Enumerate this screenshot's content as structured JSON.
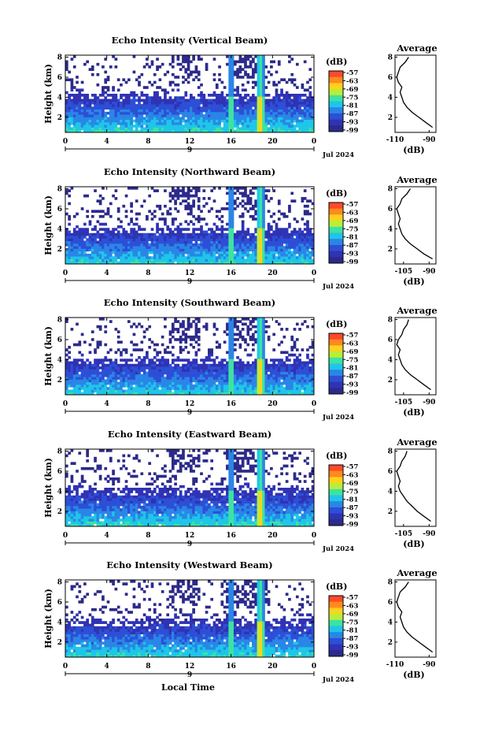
{
  "figure": {
    "xlabel": "Local Time",
    "x_ticks": [
      "0",
      "4",
      "8",
      "12",
      "16",
      "20",
      "0"
    ],
    "day_label": "9",
    "date_label": "Jul 2024",
    "ylabel": "Height (km)",
    "y_ticks": [
      "2",
      "4",
      "6",
      "8"
    ],
    "colorbar_unit": "(dB)",
    "colorbar_ticks": [
      "-57",
      "-63",
      "-69",
      "-75",
      "-81",
      "-87",
      "-93",
      "-99"
    ],
    "colorbar_colors": [
      "#ff4a2a",
      "#ff8a1e",
      "#ffd21c",
      "#b8ee3a",
      "#3ee2a2",
      "#1ec6e8",
      "#2a86e6",
      "#2d4fd6",
      "#2f33b4",
      "#2c2a8a"
    ],
    "background_color": "#2b2e6e",
    "average_title": "Average",
    "average_xlabel": "(dB)"
  },
  "chart_data": [
    {
      "type": "heatmap",
      "title": "Echo Intensity (Vertical Beam)",
      "xlabel": "",
      "ylabel": "Height (km)",
      "xlim": [
        0,
        24
      ],
      "ylim": [
        0.5,
        8.2
      ],
      "colorbar_range_db": [
        -99,
        -57
      ],
      "strong_echo_columns_hour": [
        16.0,
        18.8
      ],
      "echo_top_km_approx": 4.2,
      "average_profile": {
        "title": "Average",
        "xlabel": "(dB)",
        "xlim": [
          -110,
          -86
        ],
        "x_ticks": [
          "-110",
          "-90"
        ],
        "height_km": [
          1.0,
          1.5,
          2.0,
          2.5,
          3.0,
          3.5,
          4.0,
          4.5,
          5.0,
          5.5,
          6.0,
          6.5,
          7.0,
          7.5,
          8.0
        ],
        "db": [
          -88,
          -92,
          -96,
          -100,
          -103,
          -105,
          -106,
          -107,
          -106,
          -108,
          -109,
          -108,
          -107,
          -104,
          -102
        ]
      }
    },
    {
      "type": "heatmap",
      "title": "Echo Intensity (Northward Beam)",
      "xlabel": "",
      "ylabel": "Height (km)",
      "xlim": [
        0,
        24
      ],
      "ylim": [
        0.5,
        8.2
      ],
      "colorbar_range_db": [
        -99,
        -57
      ],
      "strong_echo_columns_hour": [
        16.0,
        18.8
      ],
      "echo_top_km_approx": 4.0,
      "average_profile": {
        "title": "Average",
        "xlabel": "(dB)",
        "xlim": [
          -110,
          -86
        ],
        "x_ticks": [
          "-105",
          "-90"
        ],
        "height_km": [
          1.0,
          1.5,
          2.0,
          2.5,
          3.0,
          3.5,
          4.0,
          4.5,
          5.0,
          5.5,
          6.0,
          6.5,
          7.0,
          7.5,
          8.0
        ],
        "db": [
          -88,
          -93,
          -97,
          -101,
          -104,
          -106,
          -107,
          -108,
          -107,
          -108,
          -109,
          -107,
          -106,
          -103,
          -101
        ]
      }
    },
    {
      "type": "heatmap",
      "title": "Echo Intensity (Southward Beam)",
      "xlabel": "",
      "ylabel": "Height (km)",
      "xlim": [
        0,
        24
      ],
      "ylim": [
        0.5,
        8.2
      ],
      "colorbar_range_db": [
        -99,
        -57
      ],
      "strong_echo_columns_hour": [
        16.0,
        18.8
      ],
      "echo_top_km_approx": 4.0,
      "average_profile": {
        "title": "Average",
        "xlabel": "(dB)",
        "xlim": [
          -110,
          -86
        ],
        "x_ticks": [
          "-105",
          "-90"
        ],
        "height_km": [
          1.0,
          1.5,
          2.0,
          2.5,
          3.0,
          3.5,
          4.0,
          4.5,
          5.0,
          5.5,
          6.0,
          6.5,
          7.0,
          7.5,
          8.0
        ],
        "db": [
          -89,
          -93,
          -97,
          -101,
          -104,
          -106,
          -107,
          -108,
          -107,
          -109,
          -108,
          -106,
          -105,
          -103,
          -102
        ]
      }
    },
    {
      "type": "heatmap",
      "title": "Echo Intensity (Eastward Beam)",
      "xlabel": "",
      "ylabel": "Height (km)",
      "xlim": [
        0,
        24
      ],
      "ylim": [
        0.5,
        8.2
      ],
      "colorbar_range_db": [
        -99,
        -57
      ],
      "strong_echo_columns_hour": [
        16.0,
        18.8
      ],
      "echo_top_km_approx": 4.1,
      "average_profile": {
        "title": "Average",
        "xlabel": "(dB)",
        "xlim": [
          -110,
          -86
        ],
        "x_ticks": [
          "-105",
          "-90"
        ],
        "height_km": [
          1.0,
          1.5,
          2.0,
          2.5,
          3.0,
          3.5,
          4.0,
          4.5,
          5.0,
          5.5,
          6.0,
          6.5,
          7.0,
          7.5,
          8.0
        ],
        "db": [
          -89,
          -93,
          -97,
          -100,
          -103,
          -105,
          -107,
          -108,
          -107,
          -108,
          -109,
          -107,
          -106,
          -104,
          -103
        ]
      }
    },
    {
      "type": "heatmap",
      "title": "Echo Intensity (Westward Beam)",
      "xlabel": "Local Time",
      "ylabel": "Height (km)",
      "xlim": [
        0,
        24
      ],
      "ylim": [
        0.5,
        8.2
      ],
      "colorbar_range_db": [
        -99,
        -57
      ],
      "strong_echo_columns_hour": [
        16.0,
        18.8
      ],
      "echo_top_km_approx": 4.1,
      "average_profile": {
        "title": "Average",
        "xlabel": "(dB)",
        "xlim": [
          -110,
          -86
        ],
        "x_ticks": [
          "-110",
          "-90"
        ],
        "height_km": [
          1.0,
          1.5,
          2.0,
          2.5,
          3.0,
          3.5,
          4.0,
          4.5,
          5.0,
          5.5,
          6.0,
          6.5,
          7.0,
          7.5,
          8.0
        ],
        "db": [
          -88,
          -92,
          -96,
          -100,
          -103,
          -105,
          -106,
          -107,
          -106,
          -108,
          -109,
          -108,
          -107,
          -104,
          -102
        ]
      }
    }
  ]
}
